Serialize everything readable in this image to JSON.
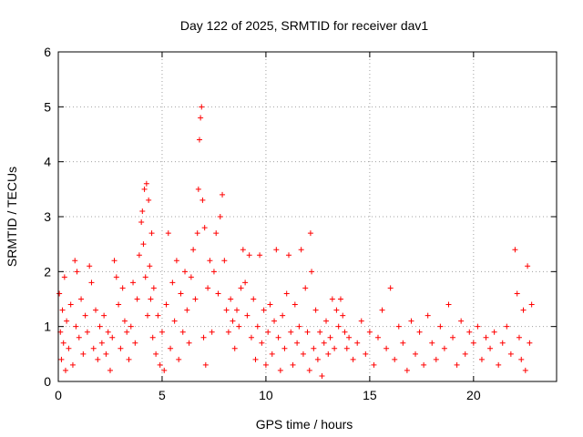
{
  "chart_data": {
    "type": "scatter",
    "title": "Day 122 of 2025, SRMTID for receiver dav1",
    "xlabel": "GPS time / hours",
    "ylabel": "SRMTID / TECUs",
    "xlim": [
      0,
      24
    ],
    "ylim": [
      0,
      6
    ],
    "x_ticks": [
      0,
      5,
      10,
      15,
      20
    ],
    "y_ticks": [
      0,
      1,
      2,
      3,
      4,
      5,
      6
    ],
    "grid": true,
    "marker": "+",
    "color": "#ff0000",
    "series": [
      {
        "name": "dav1",
        "points": [
          [
            0.05,
            1.6
          ],
          [
            0.1,
            0.9
          ],
          [
            0.15,
            0.4
          ],
          [
            0.2,
            1.3
          ],
          [
            0.25,
            0.7
          ],
          [
            0.3,
            1.9
          ],
          [
            0.35,
            0.2
          ],
          [
            0.4,
            1.1
          ],
          [
            0.5,
            0.6
          ],
          [
            0.6,
            1.4
          ],
          [
            0.7,
            0.3
          ],
          [
            0.8,
            2.2
          ],
          [
            0.85,
            1.0
          ],
          [
            0.9,
            2.0
          ],
          [
            1.0,
            0.8
          ],
          [
            1.1,
            1.5
          ],
          [
            1.2,
            0.5
          ],
          [
            1.3,
            1.2
          ],
          [
            1.4,
            0.9
          ],
          [
            1.5,
            2.1
          ],
          [
            1.6,
            1.8
          ],
          [
            1.7,
            0.6
          ],
          [
            1.8,
            1.3
          ],
          [
            1.9,
            0.4
          ],
          [
            2.0,
            1.0
          ],
          [
            2.1,
            0.7
          ],
          [
            2.2,
            1.2
          ],
          [
            2.3,
            0.5
          ],
          [
            2.4,
            0.9
          ],
          [
            2.5,
            0.2
          ],
          [
            2.6,
            0.8
          ],
          [
            2.7,
            2.2
          ],
          [
            2.8,
            1.9
          ],
          [
            2.9,
            1.4
          ],
          [
            3.0,
            0.6
          ],
          [
            3.1,
            1.7
          ],
          [
            3.2,
            1.1
          ],
          [
            3.3,
            0.9
          ],
          [
            3.4,
            0.4
          ],
          [
            3.5,
            1.0
          ],
          [
            3.6,
            1.8
          ],
          [
            3.7,
            0.7
          ],
          [
            3.8,
            1.5
          ],
          [
            3.9,
            2.3
          ],
          [
            4.0,
            2.9
          ],
          [
            4.05,
            3.1
          ],
          [
            4.1,
            2.5
          ],
          [
            4.15,
            3.5
          ],
          [
            4.2,
            1.9
          ],
          [
            4.25,
            3.6
          ],
          [
            4.3,
            1.2
          ],
          [
            4.35,
            3.3
          ],
          [
            4.4,
            2.1
          ],
          [
            4.45,
            1.5
          ],
          [
            4.5,
            2.7
          ],
          [
            4.55,
            0.8
          ],
          [
            4.6,
            1.7
          ],
          [
            4.7,
            0.5
          ],
          [
            4.8,
            1.2
          ],
          [
            4.9,
            0.3
          ],
          [
            5.0,
            0.9
          ],
          [
            5.1,
            0.2
          ],
          [
            5.2,
            1.4
          ],
          [
            5.3,
            2.7
          ],
          [
            5.4,
            0.6
          ],
          [
            5.5,
            1.8
          ],
          [
            5.6,
            1.1
          ],
          [
            5.7,
            2.2
          ],
          [
            5.8,
            0.4
          ],
          [
            5.9,
            1.6
          ],
          [
            6.0,
            0.9
          ],
          [
            6.1,
            2.0
          ],
          [
            6.2,
            1.3
          ],
          [
            6.3,
            0.7
          ],
          [
            6.4,
            1.9
          ],
          [
            6.5,
            2.4
          ],
          [
            6.6,
            1.5
          ],
          [
            6.7,
            2.7
          ],
          [
            6.75,
            3.5
          ],
          [
            6.8,
            4.4
          ],
          [
            6.85,
            4.8
          ],
          [
            6.9,
            5.0
          ],
          [
            6.95,
            3.3
          ],
          [
            7.0,
            0.8
          ],
          [
            7.05,
            2.8
          ],
          [
            7.1,
            0.3
          ],
          [
            7.2,
            1.7
          ],
          [
            7.3,
            2.2
          ],
          [
            7.4,
            0.9
          ],
          [
            7.5,
            2.0
          ],
          [
            7.6,
            2.7
          ],
          [
            7.7,
            1.6
          ],
          [
            7.8,
            3.0
          ],
          [
            7.9,
            3.4
          ],
          [
            8.0,
            2.2
          ],
          [
            8.1,
            1.3
          ],
          [
            8.2,
            0.9
          ],
          [
            8.3,
            1.5
          ],
          [
            8.4,
            1.1
          ],
          [
            8.5,
            0.6
          ],
          [
            8.6,
            1.3
          ],
          [
            8.7,
            1.0
          ],
          [
            8.8,
            1.7
          ],
          [
            8.9,
            2.4
          ],
          [
            9.0,
            1.8
          ],
          [
            9.1,
            1.2
          ],
          [
            9.2,
            2.3
          ],
          [
            9.3,
            0.8
          ],
          [
            9.4,
            1.5
          ],
          [
            9.5,
            0.4
          ],
          [
            9.6,
            1.0
          ],
          [
            9.7,
            2.3
          ],
          [
            9.8,
            0.7
          ],
          [
            9.9,
            1.3
          ],
          [
            10.0,
            0.3
          ],
          [
            10.1,
            0.9
          ],
          [
            10.2,
            1.4
          ],
          [
            10.3,
            0.5
          ],
          [
            10.4,
            1.1
          ],
          [
            10.5,
            2.4
          ],
          [
            10.6,
            0.8
          ],
          [
            10.7,
            0.2
          ],
          [
            10.8,
            1.2
          ],
          [
            10.9,
            0.6
          ],
          [
            11.0,
            1.6
          ],
          [
            11.1,
            2.3
          ],
          [
            11.2,
            0.9
          ],
          [
            11.3,
            0.3
          ],
          [
            11.4,
            1.4
          ],
          [
            11.5,
            0.7
          ],
          [
            11.6,
            1.0
          ],
          [
            11.7,
            2.4
          ],
          [
            11.8,
            0.5
          ],
          [
            11.9,
            1.7
          ],
          [
            12.0,
            0.9
          ],
          [
            12.1,
            0.2
          ],
          [
            12.15,
            2.7
          ],
          [
            12.2,
            2.0
          ],
          [
            12.3,
            0.6
          ],
          [
            12.4,
            1.3
          ],
          [
            12.5,
            0.4
          ],
          [
            12.6,
            0.9
          ],
          [
            12.7,
            0.1
          ],
          [
            12.8,
            0.7
          ],
          [
            12.9,
            1.1
          ],
          [
            13.0,
            0.5
          ],
          [
            13.1,
            0.8
          ],
          [
            13.2,
            1.5
          ],
          [
            13.3,
            0.6
          ],
          [
            13.4,
            1.3
          ],
          [
            13.5,
            1.0
          ],
          [
            13.6,
            1.5
          ],
          [
            13.7,
            1.2
          ],
          [
            13.8,
            0.9
          ],
          [
            13.9,
            0.6
          ],
          [
            14.0,
            0.8
          ],
          [
            14.2,
            0.4
          ],
          [
            14.4,
            0.7
          ],
          [
            14.6,
            1.1
          ],
          [
            14.8,
            0.5
          ],
          [
            15.0,
            0.9
          ],
          [
            15.2,
            0.3
          ],
          [
            15.4,
            0.8
          ],
          [
            15.6,
            1.3
          ],
          [
            15.8,
            0.6
          ],
          [
            16.0,
            1.7
          ],
          [
            16.2,
            0.4
          ],
          [
            16.4,
            1.0
          ],
          [
            16.6,
            0.7
          ],
          [
            16.8,
            0.2
          ],
          [
            17.0,
            1.1
          ],
          [
            17.2,
            0.5
          ],
          [
            17.4,
            0.9
          ],
          [
            17.6,
            0.3
          ],
          [
            17.8,
            1.2
          ],
          [
            18.0,
            0.7
          ],
          [
            18.2,
            0.4
          ],
          [
            18.4,
            1.0
          ],
          [
            18.6,
            0.6
          ],
          [
            18.8,
            1.4
          ],
          [
            19.0,
            0.8
          ],
          [
            19.2,
            0.3
          ],
          [
            19.4,
            1.1
          ],
          [
            19.6,
            0.5
          ],
          [
            19.8,
            0.9
          ],
          [
            20.0,
            0.7
          ],
          [
            20.2,
            1.0
          ],
          [
            20.4,
            0.4
          ],
          [
            20.6,
            0.8
          ],
          [
            20.8,
            0.6
          ],
          [
            21.0,
            0.9
          ],
          [
            21.2,
            0.3
          ],
          [
            21.4,
            0.7
          ],
          [
            21.6,
            1.0
          ],
          [
            21.8,
            0.5
          ],
          [
            22.0,
            2.4
          ],
          [
            22.1,
            1.6
          ],
          [
            22.2,
            0.8
          ],
          [
            22.3,
            0.4
          ],
          [
            22.4,
            1.3
          ],
          [
            22.5,
            0.2
          ],
          [
            22.6,
            2.1
          ],
          [
            22.7,
            0.7
          ],
          [
            22.8,
            1.4
          ]
        ]
      }
    ]
  }
}
